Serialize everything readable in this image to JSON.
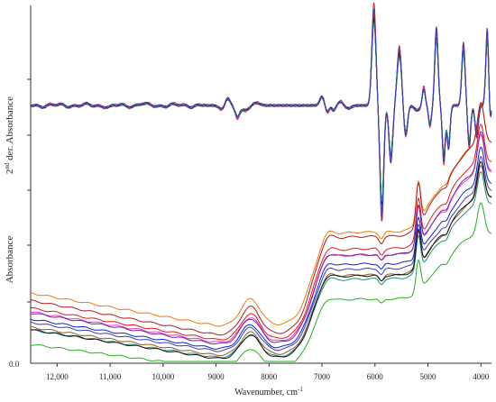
{
  "chart_data": [
    {
      "type": "line",
      "title": "",
      "ylabel_main": "2",
      "ylabel_sup": "nd",
      "ylabel_rest": " der. Absorbance",
      "xlabel": "Wavenumber, cm",
      "xlabel_sup": "-1",
      "x_reversed": true,
      "xlim": [
        12500,
        3800
      ],
      "x_ticks": [
        12000,
        11000,
        10000,
        9000,
        8000,
        7000,
        6000,
        5000,
        4000
      ],
      "x_tick_labels": [
        "12,000",
        "11,000",
        "10,000",
        "9000",
        "8000",
        "7000",
        "6000",
        "5000",
        "4000"
      ],
      "ylim": [
        -1,
        1
      ],
      "grid": false,
      "legend": "none",
      "series": [
        {
          "color": "#e8141b",
          "scale": 1.1,
          "noise": 0.012
        },
        {
          "color": "#f07800",
          "scale": 1.04,
          "noise": 0.01
        },
        {
          "color": "#20b020",
          "scale": 0.92,
          "noise": 0.01
        },
        {
          "color": "#0c22d6",
          "scale": 0.98,
          "noise": 0.011
        },
        {
          "color": "#7a1fa2",
          "scale": 1.0,
          "noise": 0.01
        },
        {
          "color": "#8b5a2b",
          "scale": 0.96,
          "noise": 0.009
        },
        {
          "color": "#111111",
          "scale": 0.94,
          "noise": 0.009
        },
        {
          "color": "#e040c0",
          "scale": 1.02,
          "noise": 0.01
        },
        {
          "color": "#1a8f7a",
          "scale": 0.9,
          "noise": 0.009
        },
        {
          "color": "#3a3ab8",
          "scale": 1.06,
          "noise": 0.011
        }
      ]
    },
    {
      "type": "line",
      "ylabel": "Absorbance",
      "xlabel": "Wavenumber, cm",
      "xlabel_sup": "-1",
      "x_reversed": true,
      "xlim": [
        12500,
        3800
      ],
      "y_tick_labels": [
        "0.0"
      ],
      "grid": false,
      "legend": "none",
      "series": [
        {
          "color": "#f07800",
          "offset": 0.055,
          "scale": 1.05
        },
        {
          "color": "#b01818",
          "offset": 0.03,
          "scale": 1.1
        },
        {
          "color": "#e8141b",
          "offset": 0.02,
          "scale": 1.02
        },
        {
          "color": "#e040c0",
          "offset": 0.015,
          "scale": 0.98
        },
        {
          "color": "#7a1fa2",
          "offset": 0.01,
          "scale": 1.0
        },
        {
          "color": "#0c22d6",
          "offset": 0.0,
          "scale": 0.95
        },
        {
          "color": "#3a3ab8",
          "offset": -0.005,
          "scale": 0.92
        },
        {
          "color": "#8b5a2b",
          "offset": -0.015,
          "scale": 0.9
        },
        {
          "color": "#1a8f7a",
          "offset": -0.02,
          "scale": 0.88
        },
        {
          "color": "#111111",
          "offset": -0.025,
          "scale": 0.93
        },
        {
          "color": "#20b020",
          "offset": -0.045,
          "scale": 0.78
        }
      ]
    }
  ]
}
